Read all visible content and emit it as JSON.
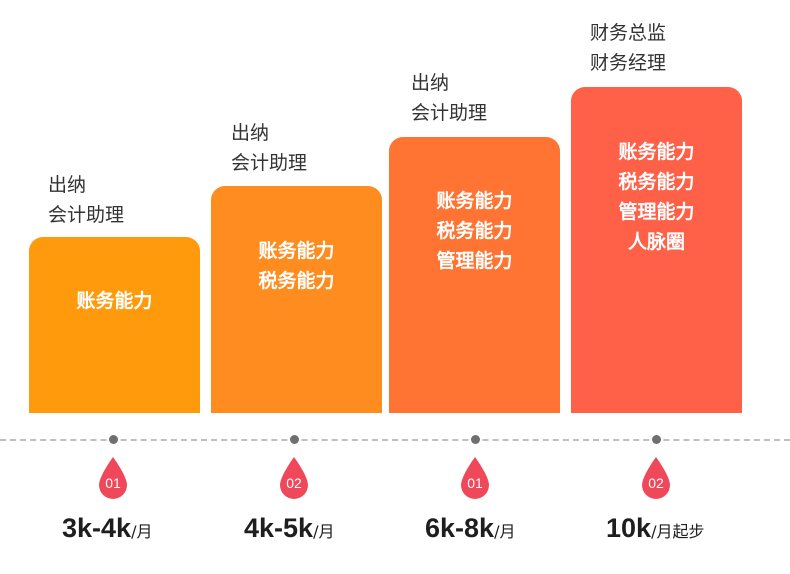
{
  "colors": {
    "bar1": "#FF9A0D",
    "bar2": "#FF8C1F",
    "bar3": "#FF7432",
    "bar4": "#FF6048",
    "drop": "#F0485B",
    "axis": "#BFBFBF",
    "dot": "#6F6F6F",
    "role_text": "#333333",
    "salary_text": "#1E1E1E"
  },
  "levels": [
    {
      "roles": [
        "出纳",
        "会计助理"
      ],
      "skills": [
        "账务能力"
      ],
      "badge": "01",
      "salary": {
        "range": "3k-4k",
        "unit": "/月"
      }
    },
    {
      "roles": [
        "出纳",
        "会计助理"
      ],
      "skills": [
        "账务能力",
        "税务能力"
      ],
      "badge": "02",
      "salary": {
        "range": "4k-5k",
        "unit": "/月"
      }
    },
    {
      "roles": [
        "出纳",
        "会计助理"
      ],
      "skills": [
        "账务能力",
        "税务能力",
        "管理能力"
      ],
      "badge": "01",
      "salary": {
        "range": "6k-8k",
        "unit": "/月"
      }
    },
    {
      "roles": [
        "财务总监",
        "财务经理"
      ],
      "skills": [
        "账务能力",
        "税务能力",
        "管理能力",
        "人脉圈"
      ],
      "badge": "02",
      "salary": {
        "range": "10k",
        "unit": "/月起步"
      }
    }
  ]
}
